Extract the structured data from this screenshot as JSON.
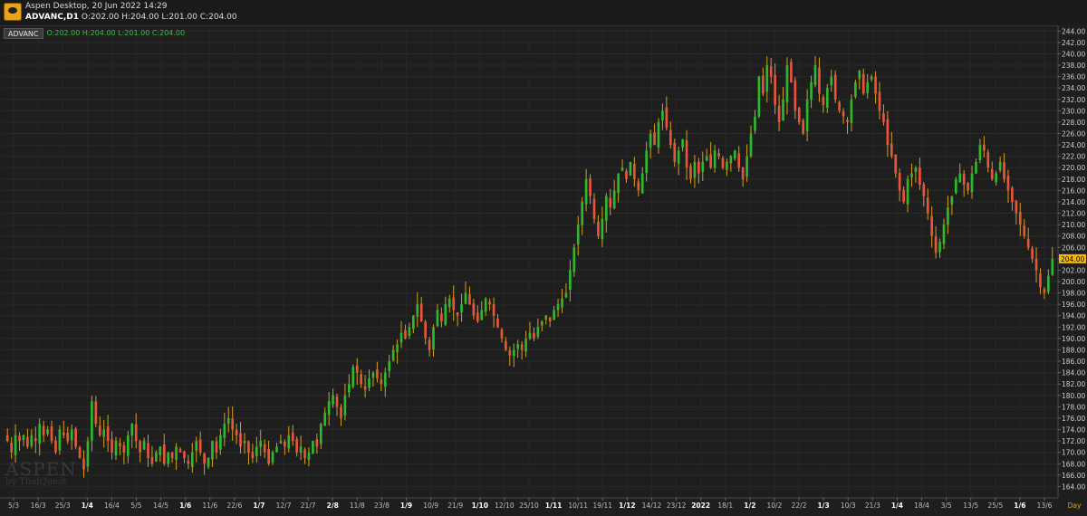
{
  "app": {
    "title": "Aspen Desktop, 20 Jun 2022 14:29",
    "symbol_timeframe": "ADVANC,D1",
    "ohlc_text": "O:202.00 H:204.00 L:201.00 C:204.00",
    "accent_color": "#e8a317"
  },
  "legend": {
    "symbol": "ADVANC",
    "values": "O:202.00 H:204.00 L:201.00 C:204.00"
  },
  "watermark": {
    "line1": "ASPEN",
    "line2": "by ThaiQuest"
  },
  "chart_data": {
    "type": "candlestick",
    "ylim": [
      162,
      245
    ],
    "y_ticks": [
      164,
      166,
      168,
      170,
      172,
      174,
      176,
      178,
      180,
      182,
      184,
      186,
      188,
      190,
      192,
      194,
      196,
      198,
      200,
      202,
      204,
      206,
      208,
      210,
      212,
      214,
      216,
      218,
      220,
      222,
      224,
      226,
      228,
      230,
      232,
      234,
      236,
      238,
      240,
      242,
      244
    ],
    "x_labels": [
      "5/3",
      "16/3",
      "25/3",
      "1/4",
      "16/4",
      "5/5",
      "14/5",
      "1/6",
      "11/6",
      "22/6",
      "1/7",
      "12/7",
      "21/7",
      "2/8",
      "11/8",
      "23/8",
      "1/9",
      "10/9",
      "21/9",
      "1/10",
      "12/10",
      "25/10",
      "1/11",
      "10/11",
      "19/11",
      "1/12",
      "14/12",
      "23/12",
      "2022",
      "18/1",
      "1/2",
      "10/2",
      "22/2",
      "1/3",
      "10/3",
      "21/3",
      "1/4",
      "18/4",
      "3/5",
      "13/5",
      "25/5",
      "1/6",
      "13/6"
    ],
    "bold_x_labels": [
      "1/4",
      "1/6",
      "1/7",
      "2/8",
      "1/9",
      "1/10",
      "1/11",
      "1/12",
      "2022",
      "1/2",
      "1/3",
      "1/4",
      "1/6"
    ],
    "x_axis_unit": "Day",
    "last_price": "204.00",
    "colors": {
      "up": "#2eb82e",
      "down": "#e8553c",
      "wick": "#d4a017",
      "last_price": "#f0b90b"
    },
    "close": [
      172,
      170,
      173,
      172,
      173,
      171,
      173,
      172,
      175,
      173,
      174,
      172,
      170,
      174,
      173,
      172,
      174,
      171,
      169,
      167,
      172,
      179,
      175,
      173,
      174,
      172,
      170,
      172,
      171,
      170,
      173,
      175,
      172,
      170,
      172,
      169,
      168,
      170,
      171,
      168,
      170,
      169,
      171,
      170,
      169,
      168,
      170,
      172,
      170,
      168,
      169,
      172,
      170,
      173,
      175,
      176,
      174,
      173,
      171,
      172,
      170,
      169,
      171,
      172,
      170,
      168,
      170,
      171,
      172,
      171,
      173,
      172,
      170,
      171,
      169,
      170,
      172,
      171,
      175,
      177,
      179,
      180,
      178,
      176,
      180,
      182,
      185,
      184,
      182,
      181,
      183,
      184,
      183,
      182,
      184,
      186,
      188,
      189,
      191,
      190,
      192,
      194,
      196,
      193,
      190,
      188,
      192,
      195,
      193,
      196,
      197,
      195,
      194,
      196,
      198,
      196,
      194,
      193,
      195,
      197,
      196,
      194,
      192,
      190,
      188,
      187,
      188,
      189,
      188,
      190,
      191,
      190,
      192,
      193,
      194,
      193,
      195,
      196,
      197,
      198,
      202,
      206,
      210,
      214,
      218,
      215,
      211,
      208,
      211,
      215,
      213,
      216,
      219,
      220,
      218,
      221,
      218,
      216,
      219,
      223,
      226,
      224,
      228,
      230,
      227,
      224,
      221,
      223,
      225,
      220,
      218,
      221,
      219,
      221,
      222,
      220,
      223,
      222,
      220,
      221,
      222,
      223,
      220,
      218,
      222,
      226,
      229,
      236,
      233,
      238,
      236,
      231,
      228,
      232,
      238,
      235,
      230,
      228,
      226,
      232,
      235,
      238,
      233,
      231,
      234,
      236,
      232,
      230,
      229,
      228,
      232,
      235,
      237,
      233,
      235,
      236,
      233,
      230,
      228,
      224,
      222,
      219,
      216,
      214,
      218,
      219,
      220,
      217,
      215,
      212,
      208,
      205,
      207,
      210,
      213,
      215,
      218,
      219,
      217,
      216,
      219,
      221,
      224,
      223,
      220,
      218,
      219,
      221,
      218,
      216,
      214,
      212,
      210,
      208,
      206,
      204,
      202,
      199,
      198,
      201,
      204
    ]
  }
}
